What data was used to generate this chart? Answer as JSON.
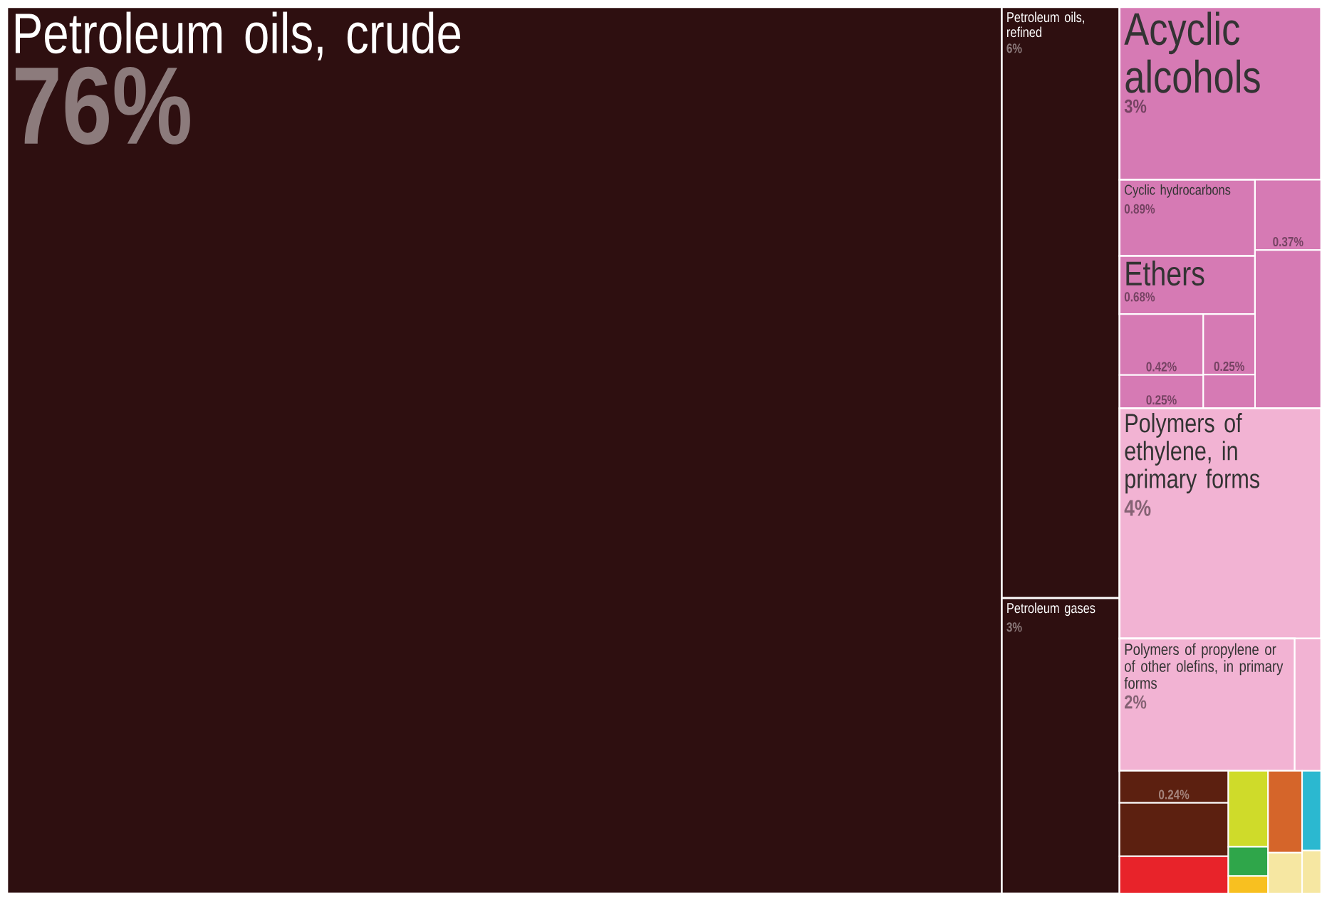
{
  "chart_data": {
    "type": "other",
    "categories": [
      "Petroleum oils, crude",
      "Petroleum oils, refined",
      "Petroleum gases",
      "Acyclic alcohols",
      "Cyclic hydrocarbons",
      "Ethers",
      "Polymers of ethylene, in primary forms",
      "Polymers of propylene or of other olefins, in primary forms"
    ],
    "values": [
      76,
      6,
      3,
      3,
      0.89,
      0.68,
      4,
      2
    ],
    "value_labels": [
      "76%",
      "6%",
      "3%",
      "3%",
      "0.89%",
      "0.68%",
      "4%",
      "2%"
    ],
    "colors": [
      "#2e0f10",
      "#2e0f10",
      "#2e0f10",
      "#d67ab4",
      "#d67ab4",
      "#d67ab4",
      "#f2b3d3",
      "#f2b3d3"
    ],
    "annotations": [
      "0.37%",
      "0.42%",
      "0.25%",
      "0.25%",
      "0.24%"
    ]
  }
}
